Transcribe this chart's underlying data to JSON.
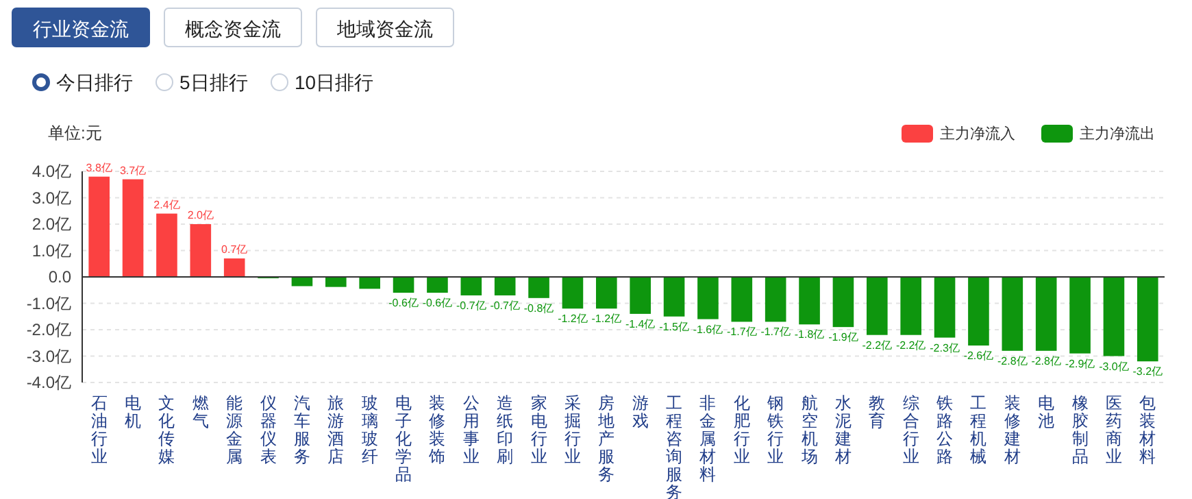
{
  "chart_data": {
    "type": "bar",
    "ylabel": "单位:元",
    "annotations": [
      "行业资金流",
      "概念资金流",
      "地域资金流",
      "今日排行",
      "5日排行",
      "10日排行"
    ],
    "categories": [
      "石油行业",
      "电机",
      "文化传媒",
      "燃气",
      "能源金属",
      "仪器仪表",
      "汽车服务",
      "旅游酒店",
      "玻璃玻纤",
      "电子化学品",
      "装修装饰",
      "公用事业",
      "造纸印刷",
      "家电行业",
      "采掘行业",
      "房地产服务",
      "游戏",
      "工程咨询服务",
      "非金属材料",
      "化肥行业",
      "钢铁行业",
      "航空机场",
      "水泥建材",
      "教育",
      "综合行业",
      "铁路公路",
      "工程机械",
      "装修建材",
      "电池",
      "橡胶制品",
      "医药商业",
      "包装材料"
    ],
    "series": [
      {
        "name": "主力净流入",
        "color": "#fb4141",
        "values": [
          3.8,
          3.7,
          2.4,
          2.0,
          0.7,
          null,
          null,
          null,
          null,
          null,
          null,
          null,
          null,
          null,
          null,
          null,
          null,
          null,
          null,
          null,
          null,
          null,
          null,
          null,
          null,
          null,
          null,
          null,
          null,
          null,
          null,
          null
        ],
        "value_labels": [
          "3.8亿",
          "3.7亿",
          "2.4亿",
          "2.0亿",
          "0.7亿",
          null,
          null,
          null,
          null,
          null,
          null,
          null,
          null,
          null,
          null,
          null,
          null,
          null,
          null,
          null,
          null,
          null,
          null,
          null,
          null,
          null,
          null,
          null,
          null,
          null,
          null,
          null
        ]
      },
      {
        "name": "主力净流出",
        "color": "#0e960e",
        "values": [
          null,
          null,
          null,
          null,
          null,
          -0.05,
          -0.35,
          -0.38,
          -0.45,
          -0.6,
          -0.6,
          -0.7,
          -0.7,
          -0.8,
          -1.2,
          -1.2,
          -1.4,
          -1.5,
          -1.6,
          -1.7,
          -1.7,
          -1.8,
          -1.9,
          -2.2,
          -2.2,
          -2.3,
          -2.6,
          -2.8,
          -2.8,
          -2.9,
          -3.0,
          -3.2
        ],
        "value_labels": [
          null,
          null,
          null,
          null,
          null,
          null,
          null,
          null,
          null,
          "-0.6亿",
          "-0.6亿",
          "-0.7亿",
          "-0.7亿",
          "-0.8亿",
          "-1.2亿",
          "-1.2亿",
          "-1.4亿",
          "-1.5亿",
          "-1.6亿",
          "-1.7亿",
          "-1.7亿",
          "-1.8亿",
          "-1.9亿",
          "-2.2亿",
          "-2.2亿",
          "-2.3亿",
          "-2.6亿",
          "-2.8亿",
          "-2.8亿",
          "-2.9亿",
          "-3.0亿",
          "-3.2亿"
        ]
      }
    ],
    "ylim": [
      -4,
      4
    ],
    "yticks": [
      {
        "value": 4,
        "label": "4.0亿"
      },
      {
        "value": 3,
        "label": "3.0亿"
      },
      {
        "value": 2,
        "label": "2.0亿"
      },
      {
        "value": 1,
        "label": "1.0亿"
      },
      {
        "value": 0,
        "label": "0.0"
      },
      {
        "value": -1,
        "label": "-1.0亿"
      },
      {
        "value": -2,
        "label": "-2.0亿"
      },
      {
        "value": -3,
        "label": "-3.0亿"
      },
      {
        "value": -4,
        "label": "-4.0亿"
      }
    ],
    "grid": "y",
    "legend": "top right"
  }
}
